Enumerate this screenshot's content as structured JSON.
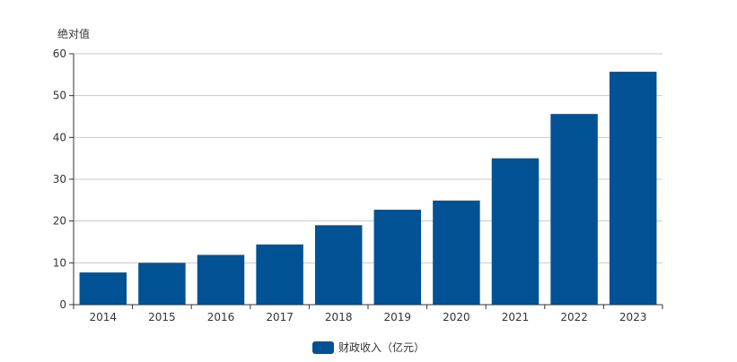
{
  "chart_data": {
    "type": "bar",
    "categories": [
      "2014",
      "2015",
      "2016",
      "2017",
      "2018",
      "2019",
      "2020",
      "2021",
      "2022",
      "2023"
    ],
    "series": [
      {
        "name": "财政收入（亿元）",
        "values": [
          7.7,
          10.0,
          11.9,
          14.4,
          19.0,
          22.7,
          24.9,
          35.0,
          45.6,
          55.7
        ]
      }
    ],
    "ylabel": "绝对值",
    "ylim": [
      0,
      60
    ],
    "yticks": [
      "0",
      "10",
      "20",
      "30",
      "40",
      "50",
      "60"
    ],
    "grid": true,
    "legend_position": "bottom",
    "colors": {
      "bar": "#005294",
      "grid": "#c8c8c8",
      "axis": "#333333",
      "text": "#333333"
    }
  }
}
